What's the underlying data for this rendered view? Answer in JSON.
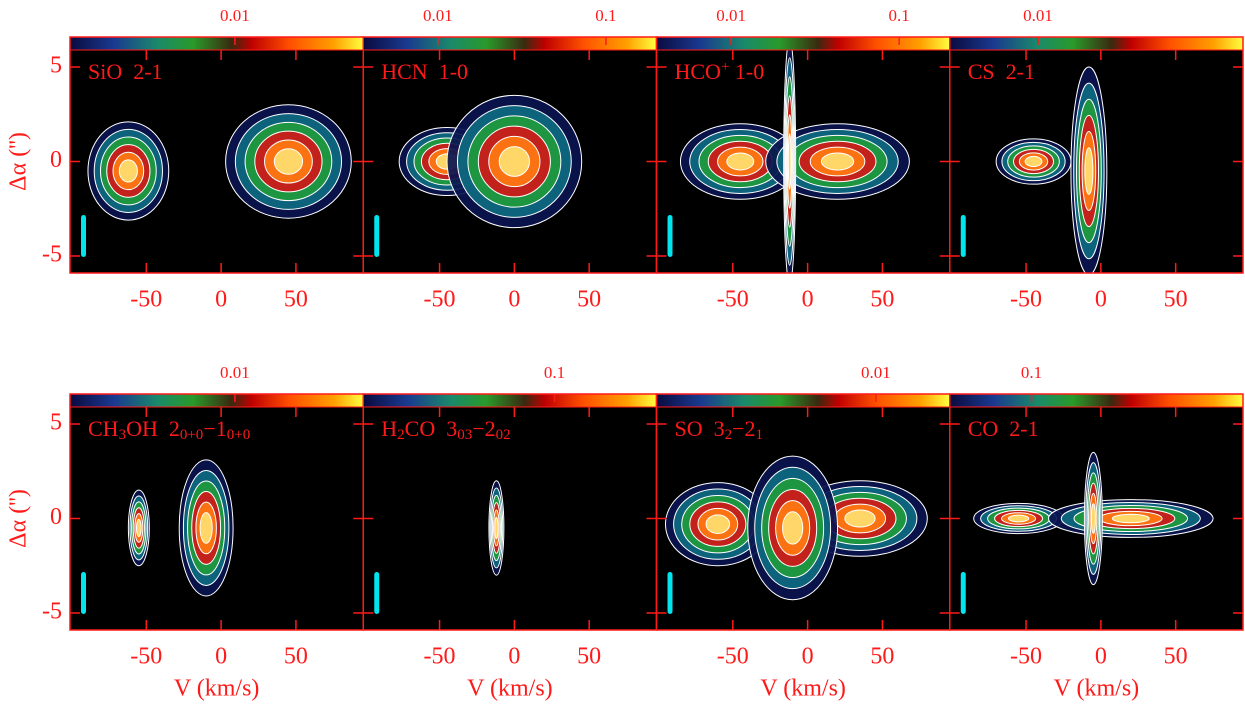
{
  "chart_data": [
    {
      "type": "pv-diagram",
      "label": [
        {
          "text": "SiO  2-1"
        }
      ],
      "ylabel": "Δα ('')",
      "xlim": [
        -101,
        95
      ],
      "xticks": [
        -50,
        0,
        50
      ],
      "ylim": [
        -5.9,
        5.9
      ],
      "yticks": [
        -5,
        0,
        5
      ],
      "colorbar": {
        "scale": "log",
        "lim": [
          0.002,
          0.035
        ],
        "ticks": [
          0.01
        ]
      },
      "components": [
        {
          "v": -62,
          "offset": -0.5,
          "dv": 27,
          "doffset": 2.6
        },
        {
          "v": 45,
          "offset": 0,
          "dv": 42,
          "doffset": 3.0
        }
      ]
    },
    {
      "type": "pv-diagram",
      "label": [
        {
          "text": "HCN  1-0"
        }
      ],
      "xlim": [
        -101,
        95
      ],
      "xticks": [
        -50,
        0,
        50
      ],
      "ylim": [
        -5.9,
        5.9
      ],
      "yticks": [
        -5,
        0,
        5
      ],
      "colorbar": {
        "scale": "log",
        "lim": [
          0.0036,
          0.2
        ],
        "ticks": [
          0.01,
          0.1
        ]
      },
      "components": [
        {
          "v": -45,
          "offset": 0,
          "dv": 32,
          "doffset": 1.8
        },
        {
          "v": 0,
          "offset": 0,
          "dv": 45,
          "doffset": 3.5
        }
      ]
    },
    {
      "type": "pv-diagram",
      "label": [
        {
          "text": "HCO"
        },
        {
          "sup": "+"
        },
        {
          "text": " 1-0"
        }
      ],
      "xlim": [
        -101,
        95
      ],
      "xticks": [
        -50,
        0,
        50
      ],
      "ylim": [
        -5.9,
        5.9
      ],
      "yticks": [
        -5,
        0,
        5
      ],
      "colorbar": {
        "scale": "log",
        "lim": [
          0.0036,
          0.2
        ],
        "ticks": [
          0.01,
          0.1
        ]
      },
      "components": [
        {
          "v": -45,
          "offset": 0,
          "dv": 40,
          "doffset": 2
        },
        {
          "v": 20,
          "offset": 0,
          "dv": 48,
          "doffset": 2
        },
        {
          "v": -12,
          "offset": 0,
          "dv": 4,
          "doffset": 6.5
        }
      ]
    },
    {
      "type": "pv-diagram",
      "label": [
        {
          "text": "CS  2-1"
        }
      ],
      "xlim": [
        -101,
        95
      ],
      "xticks": [
        -50,
        0,
        50
      ],
      "ylim": [
        -5.9,
        5.9
      ],
      "yticks": [
        -5,
        0,
        5
      ],
      "colorbar": {
        "scale": "log",
        "lim": [
          0.005,
          0.05
        ],
        "ticks": [
          0.01
        ]
      },
      "components": [
        {
          "v": -45,
          "offset": 0,
          "dv": 25,
          "doffset": 1.2
        },
        {
          "v": -8,
          "offset": -0.5,
          "dv": 12,
          "doffset": 5.5
        }
      ]
    },
    {
      "type": "pv-diagram",
      "label": [
        {
          "text": "CH"
        },
        {
          "sub": "3"
        },
        {
          "text": "OH  2"
        },
        {
          "sub": "0+0"
        },
        {
          "text": "−1"
        },
        {
          "sub": "0+0"
        }
      ],
      "ylabel": "Δα ('')",
      "xlabel": "V (km/s)",
      "xlim": [
        -101,
        95
      ],
      "xticks": [
        -50,
        0,
        50
      ],
      "ylim": [
        -5.9,
        5.9
      ],
      "yticks": [
        -5,
        0,
        5
      ],
      "colorbar": {
        "scale": "log",
        "lim": [
          0.002,
          0.035
        ],
        "ticks": [
          0.01
        ]
      },
      "components": [
        {
          "v": -55,
          "offset": -0.5,
          "dv": 7,
          "doffset": 2
        },
        {
          "v": -10,
          "offset": -0.5,
          "dv": 18,
          "doffset": 3.6
        }
      ]
    },
    {
      "type": "pv-diagram",
      "label": [
        {
          "text": "H"
        },
        {
          "sub": "2"
        },
        {
          "text": "CO  3"
        },
        {
          "sub": "03"
        },
        {
          "text": "−2"
        },
        {
          "sub": "02"
        }
      ],
      "xlabel": "V (km/s)",
      "xlim": [
        -101,
        95
      ],
      "xticks": [
        -50,
        0,
        50
      ],
      "ylim": [
        -5.9,
        5.9
      ],
      "yticks": [
        -5,
        0,
        5
      ],
      "colorbar": {
        "scale": "log",
        "lim": [
          0.03,
          0.19
        ],
        "ticks": [
          0.1
        ]
      },
      "components": [
        {
          "v": -12,
          "offset": -0.5,
          "dv": 5,
          "doffset": 2.5
        }
      ]
    },
    {
      "type": "pv-diagram",
      "label": [
        {
          "text": "SO  3"
        },
        {
          "sub": "2"
        },
        {
          "text": "−2"
        },
        {
          "sub": "1"
        }
      ],
      "xlabel": "V (km/s)",
      "xlim": [
        -101,
        95
      ],
      "xticks": [
        -50,
        0,
        50
      ],
      "ylim": [
        -5.9,
        5.9
      ],
      "yticks": [
        -5,
        0,
        5
      ],
      "colorbar": {
        "scale": "log",
        "lim": [
          0.003,
          0.015
        ],
        "ticks": [
          0.01
        ]
      },
      "components": [
        {
          "v": -60,
          "offset": -0.3,
          "dv": 35,
          "doffset": 2.2
        },
        {
          "v": 35,
          "offset": 0,
          "dv": 45,
          "doffset": 2
        },
        {
          "v": -10,
          "offset": -0.5,
          "dv": 30,
          "doffset": 3.8
        }
      ]
    },
    {
      "type": "pv-diagram",
      "label": [
        {
          "text": "CO  2-1"
        }
      ],
      "xlabel": "V (km/s)",
      "xlim": [
        -101,
        95
      ],
      "xticks": [
        -50,
        0,
        50
      ],
      "ylim": [
        -5.9,
        5.9
      ],
      "yticks": [
        -5,
        0,
        5
      ],
      "colorbar": {
        "scale": "log",
        "lim": [
          0.05,
          0.6
        ],
        "ticks": [
          0.1
        ]
      },
      "components": [
        {
          "v": -55,
          "offset": 0,
          "dv": 30,
          "doffset": 0.8
        },
        {
          "v": 20,
          "offset": 0,
          "dv": 55,
          "doffset": 1
        },
        {
          "v": -5,
          "offset": 0,
          "dv": 6,
          "doffset": 3.5
        }
      ]
    }
  ]
}
